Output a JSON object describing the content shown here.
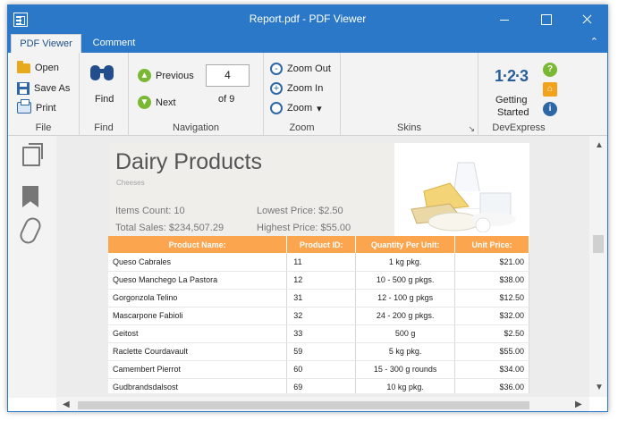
{
  "window": {
    "title": "Report.pdf - PDF Viewer"
  },
  "tabs": [
    {
      "label": "PDF Viewer"
    },
    {
      "label": "Comment"
    }
  ],
  "ribbon": {
    "file": {
      "open": "Open",
      "save_as": "Save As",
      "print": "Print",
      "group": "File"
    },
    "find": {
      "button": "Find",
      "group": "Find"
    },
    "navigation": {
      "previous": "Previous",
      "next": "Next",
      "page": "4",
      "total": "of 9",
      "group": "Navigation"
    },
    "zoom": {
      "zoom_out": "Zoom Out",
      "zoom_in": "Zoom In",
      "zoom": "Zoom",
      "group": "Zoom"
    },
    "skins": {
      "group": "Skins"
    },
    "devexpress": {
      "getting_started_line1": "Getting",
      "getting_started_line2": "Started",
      "group": "DevExpress",
      "logo": "1·2·3"
    }
  },
  "report": {
    "title": "Dairy Products",
    "subtitle": "Cheeses",
    "items_count": "Items Count:  10",
    "total_sales": "Total Sales:  $234,507.29",
    "lowest_price": "Lowest Price:  $2.50",
    "highest_price": "Highest Price:  $55.00",
    "headers": [
      "Product Name:",
      "Product ID:",
      "Quantity Per Unit:",
      "Unit Price:"
    ],
    "rows": [
      [
        "Queso Cabrales",
        "11",
        "1 kg pkg.",
        "$21.00"
      ],
      [
        "Queso Manchego La Pastora",
        "12",
        "10 - 500 g pkgs.",
        "$38.00"
      ],
      [
        "Gorgonzola Telino",
        "31",
        "12 - 100 g pkgs",
        "$12.50"
      ],
      [
        "Mascarpone Fabioli",
        "32",
        "24 - 200 g pkgs.",
        "$32.00"
      ],
      [
        "Geitost",
        "33",
        "500 g",
        "$2.50"
      ],
      [
        "Raclette Courdavault",
        "59",
        "5 kg pkg.",
        "$55.00"
      ],
      [
        "Camembert Pierrot",
        "60",
        "15 - 300 g rounds",
        "$34.00"
      ],
      [
        "Gudbrandsdalsost",
        "69",
        "10 kg pkg.",
        "$36.00"
      ]
    ]
  }
}
